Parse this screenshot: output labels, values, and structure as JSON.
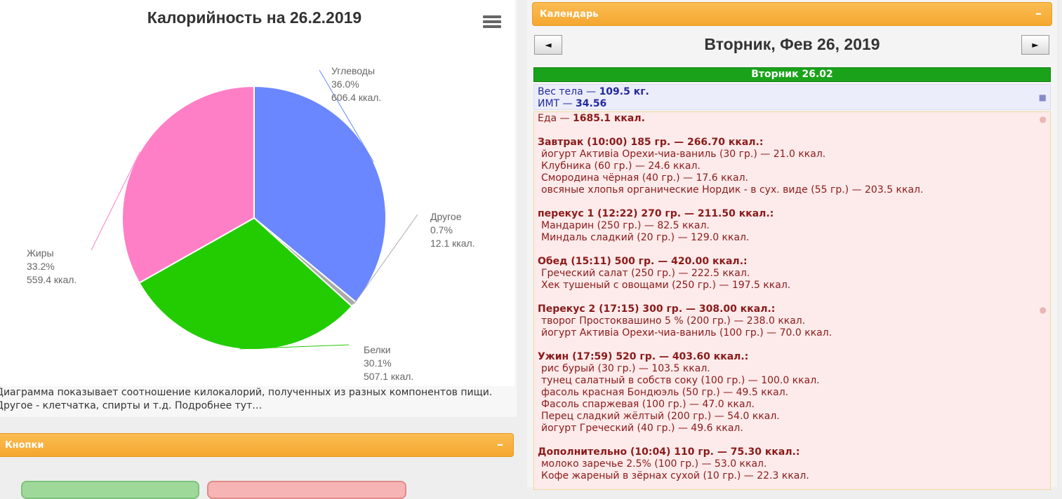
{
  "chart_data": {
    "type": "pie",
    "title": "Калорийность на 26.2.2019",
    "slices": [
      {
        "name": "Углеводы",
        "percent": 36.0,
        "value_label": "606.4 ккал.",
        "color": "#6b87ff"
      },
      {
        "name": "Другое",
        "percent": 0.7,
        "value_label": "12.1 ккал.",
        "color": "#aaaaaa"
      },
      {
        "name": "Белки",
        "percent": 30.1,
        "value_label": "507.1 ккал.",
        "color": "#22cc00"
      },
      {
        "name": "Жиры",
        "percent": 33.2,
        "value_label": "559.4 ккал.",
        "color": "#ff7fc6"
      }
    ]
  },
  "chart_description": "Диаграмма показывает соотношение килокалорий, полученных из разных компонентов пищи. Другое - клетчатка, спирты и т.д. Подробнее тут…",
  "buttons_panel": {
    "title": "Кнопки",
    "minimize": "–"
  },
  "calendar": {
    "panel_title": "Календарь",
    "minimize": "–",
    "prev": "◄",
    "next": "►",
    "date_title": "Вторник, Фев 26, 2019",
    "day_bar": "Вторник 26.02",
    "weight_label": "Вес тела — ",
    "weight_value": "109.5 кг.",
    "bmi_label": "ИМТ — ",
    "bmi_value": "34.56"
  },
  "food_log": [
    {
      "text": "Еда — ",
      "bold": "1685.1 ккал.",
      "kind": "total"
    },
    {
      "text": "Завтрак (10:00) 185 гр. — 266.70 ккал.:",
      "kind": "meal"
    },
    {
      "text": "йогурт Активia Орехи-чиа-ваниль (30 гр.) — 21.0 ккал.",
      "kind": "item"
    },
    {
      "text": "Клубника (60 гр.) — 24.6 ккал.",
      "kind": "item"
    },
    {
      "text": "Смородина чёрная (40 гр.) — 17.6 ккал.",
      "kind": "item"
    },
    {
      "text": "овсяные хлопья органические Нордик - в сух. виде (55 гр.) — 203.5 ккал.",
      "kind": "item"
    },
    {
      "text": "перекус 1 (12:22) 270 гр. — 211.50 ккал.:",
      "kind": "meal"
    },
    {
      "text": "Мандарин (250 гр.) — 82.5 ккал.",
      "kind": "item"
    },
    {
      "text": "Миндаль сладкий (20 гр.) — 129.0 ккал.",
      "kind": "item"
    },
    {
      "text": "Обед (15:11) 500 гр. — 420.00 ккал.:",
      "kind": "meal"
    },
    {
      "text": "Греческий салат (250 гр.) — 222.5 ккал.",
      "kind": "item"
    },
    {
      "text": "Хек тушеный с овощами (250 гр.) — 197.5 ккал.",
      "kind": "item"
    },
    {
      "text": "Перекус 2 (17:15) 300 гр. — 308.00 ккал.:",
      "kind": "meal"
    },
    {
      "text": "творог Простоквашино 5 % (200 гр.) — 238.0 ккал.",
      "kind": "item"
    },
    {
      "text": "йогурт Активia Орехи-чиа-ваниль (100 гр.) — 70.0 ккал.",
      "kind": "item"
    },
    {
      "text": "Ужин (17:59) 520 гр. — 403.60 ккал.:",
      "kind": "meal"
    },
    {
      "text": "рис бурый (30 гр.) — 103.5 ккал.",
      "kind": "item"
    },
    {
      "text": "тунец салатный в собств соку (100 гр.) — 100.0 ккал.",
      "kind": "item"
    },
    {
      "text": "фасоль красная Бондюэль (50 гр.) — 49.5 ккал.",
      "kind": "item"
    },
    {
      "text": "Фасоль спаржевая (100 гр.) — 47.0 ккал.",
      "kind": "item"
    },
    {
      "text": "Перец сладкий жёлтый (200 гр.) — 54.0 ккал.",
      "kind": "item"
    },
    {
      "text": "йогурт Греческий (40 гр.) — 49.6 ккал.",
      "kind": "item"
    },
    {
      "text": "Дополнительно (10:04) 110 гр. — 75.30 ккал.:",
      "kind": "meal"
    },
    {
      "text": "молоко заречье 2.5% (100 гр.) — 53.0 ккал.",
      "kind": "item"
    },
    {
      "text": "Кофе жареный в зёрнах сухой (10 гр.) — 22.3 ккал.",
      "kind": "item"
    }
  ],
  "icons": {
    "menu": "hamburger-menu-icon",
    "weight": "scale-icon",
    "food": "apple-icon"
  }
}
